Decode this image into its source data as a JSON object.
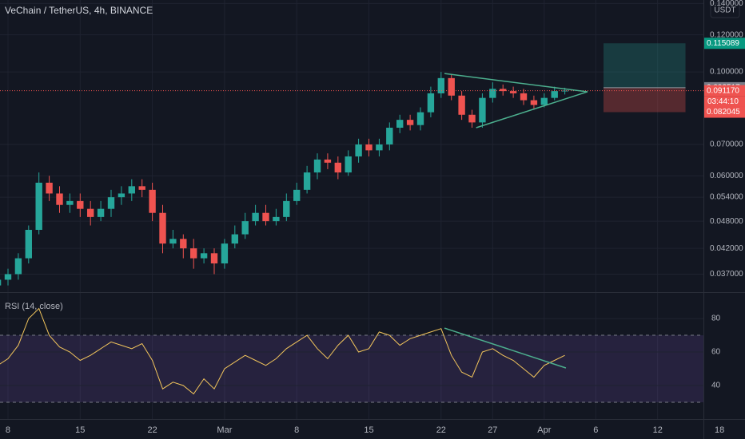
{
  "header": {
    "title": "VeChain / TetherUS, 4h, BINANCE",
    "currency": "USDT"
  },
  "chart_data": [
    {
      "type": "candlestick",
      "x": [
        -1,
        0,
        1,
        2,
        3,
        4,
        5,
        6,
        7,
        8,
        9,
        10,
        11,
        12,
        13,
        14,
        15,
        16,
        17,
        18,
        19,
        20,
        21,
        22,
        23,
        24,
        25,
        26,
        27,
        28,
        29,
        30,
        31,
        32,
        33,
        34,
        35,
        36,
        37,
        38,
        39,
        40,
        41,
        42,
        43,
        44,
        45,
        46,
        47,
        48,
        49,
        50,
        51,
        52,
        53,
        54
      ],
      "open": [
        0.035,
        0.036,
        0.037,
        0.04,
        0.046,
        0.058,
        0.055,
        0.052,
        0.053,
        0.051,
        0.049,
        0.051,
        0.054,
        0.055,
        0.057,
        0.056,
        0.05,
        0.043,
        0.044,
        0.042,
        0.04,
        0.041,
        0.039,
        0.043,
        0.045,
        0.048,
        0.05,
        0.048,
        0.049,
        0.053,
        0.056,
        0.061,
        0.065,
        0.064,
        0.061,
        0.066,
        0.07,
        0.068,
        0.07,
        0.076,
        0.079,
        0.077,
        0.082,
        0.09,
        0.097,
        0.089,
        0.081,
        0.078,
        0.088,
        0.092,
        0.091,
        0.09,
        0.087,
        0.085,
        0.088,
        0.091
      ],
      "high": [
        0.037,
        0.038,
        0.041,
        0.047,
        0.061,
        0.06,
        0.057,
        0.055,
        0.055,
        0.053,
        0.053,
        0.056,
        0.057,
        0.059,
        0.059,
        0.058,
        0.052,
        0.046,
        0.045,
        0.044,
        0.042,
        0.042,
        0.044,
        0.047,
        0.05,
        0.052,
        0.052,
        0.051,
        0.055,
        0.058,
        0.063,
        0.067,
        0.067,
        0.066,
        0.068,
        0.072,
        0.072,
        0.072,
        0.078,
        0.081,
        0.081,
        0.084,
        0.093,
        0.1,
        0.099,
        0.091,
        0.083,
        0.09,
        0.095,
        0.094,
        0.093,
        0.092,
        0.089,
        0.09,
        0.093,
        0.0925
      ],
      "low": [
        0.034,
        0.035,
        0.036,
        0.039,
        0.045,
        0.053,
        0.05,
        0.05,
        0.049,
        0.047,
        0.048,
        0.049,
        0.052,
        0.053,
        0.054,
        0.048,
        0.041,
        0.042,
        0.04,
        0.038,
        0.039,
        0.037,
        0.038,
        0.042,
        0.044,
        0.047,
        0.047,
        0.047,
        0.048,
        0.052,
        0.055,
        0.059,
        0.062,
        0.059,
        0.06,
        0.064,
        0.066,
        0.066,
        0.068,
        0.074,
        0.075,
        0.075,
        0.08,
        0.088,
        0.087,
        0.079,
        0.076,
        0.076,
        0.086,
        0.089,
        0.088,
        0.085,
        0.083,
        0.084,
        0.087,
        0.0895
      ],
      "close": [
        0.036,
        0.037,
        0.04,
        0.046,
        0.058,
        0.055,
        0.052,
        0.053,
        0.051,
        0.049,
        0.051,
        0.054,
        0.055,
        0.057,
        0.056,
        0.05,
        0.043,
        0.044,
        0.042,
        0.04,
        0.041,
        0.039,
        0.043,
        0.045,
        0.048,
        0.05,
        0.048,
        0.049,
        0.053,
        0.056,
        0.061,
        0.065,
        0.064,
        0.061,
        0.066,
        0.07,
        0.068,
        0.07,
        0.076,
        0.079,
        0.077,
        0.082,
        0.09,
        0.097,
        0.089,
        0.081,
        0.078,
        0.088,
        0.092,
        0.091,
        0.09,
        0.087,
        0.085,
        0.088,
        0.091,
        0.0912
      ],
      "up_color": "#26a69a",
      "down_color": "#ef5350",
      "xlim": [
        -0.775,
        67.44
      ],
      "xticks": [
        {
          "value": 0,
          "label": "8"
        },
        {
          "value": 7,
          "label": "15"
        },
        {
          "value": 14,
          "label": "22"
        },
        {
          "value": 21,
          "label": "Mar"
        },
        {
          "value": 28,
          "label": "8"
        },
        {
          "value": 35,
          "label": "15"
        },
        {
          "value": 42,
          "label": "22"
        },
        {
          "value": 47,
          "label": "27"
        },
        {
          "value": 52,
          "label": "Apr"
        },
        {
          "value": 57,
          "label": "6"
        },
        {
          "value": 63,
          "label": "12"
        },
        {
          "value": 69,
          "label": "18"
        }
      ],
      "ylim": [
        0.034,
        0.1424
      ],
      "log_scale": true,
      "yticks": [
        {
          "value": 0.037,
          "label": "0.037000"
        },
        {
          "value": 0.042,
          "label": "0.042000"
        },
        {
          "value": 0.048,
          "label": "0.048000"
        },
        {
          "value": 0.054,
          "label": "0.054000"
        },
        {
          "value": 0.06,
          "label": "0.060000"
        },
        {
          "value": 0.07,
          "label": "0.070000"
        },
        {
          "value": 0.1,
          "label": "0.100000"
        },
        {
          "value": 0.12,
          "label": "0.120000"
        },
        {
          "value": 0.14,
          "label": "0.140000"
        }
      ],
      "current_price": {
        "value": 0.09117,
        "label": "0.091170"
      },
      "countdown": "03:44:10",
      "position": {
        "x": [
          57.75,
          65.7
        ],
        "target": 0.115089,
        "entry": 0.092517,
        "stop": 0.082045
      },
      "drawings": [
        {
          "x": [
            42.33,
            56.2
          ],
          "y": [
            0.0992,
            0.0907
          ],
          "color": "#4caf8e"
        },
        {
          "x": [
            45.4,
            56.2
          ],
          "y": [
            0.076,
            0.0907
          ],
          "color": "#4caf8e"
        }
      ]
    },
    {
      "type": "line",
      "title": "RSI (14, close)",
      "x": [
        -1,
        0,
        1,
        2,
        3,
        4,
        5,
        6,
        7,
        8,
        9,
        10,
        11,
        12,
        13,
        14,
        15,
        16,
        17,
        18,
        19,
        20,
        21,
        22,
        23,
        24,
        25,
        26,
        27,
        28,
        29,
        30,
        31,
        32,
        33,
        34,
        35,
        36,
        37,
        38,
        39,
        40,
        41,
        42,
        43,
        44,
        45,
        46,
        47,
        48,
        49,
        50,
        51,
        52,
        53,
        54
      ],
      "values": [
        52,
        56,
        64,
        80,
        86,
        70,
        63,
        60,
        55,
        58,
        62,
        66,
        64,
        62,
        65,
        55,
        38,
        42,
        40,
        35,
        44,
        38,
        50,
        54,
        58,
        55,
        52,
        56,
        62,
        66,
        70,
        62,
        56,
        64,
        70,
        60,
        62,
        72,
        70,
        64,
        68,
        70,
        72,
        74,
        58,
        48,
        45,
        60,
        62,
        58,
        55,
        50,
        45,
        52,
        55,
        58
      ],
      "color": "#f2c55c",
      "ylim": [
        20,
        94.8
      ],
      "yticks": [
        40,
        60,
        80
      ],
      "bands": [
        30,
        70
      ],
      "drawings": [
        {
          "x": [
            42.33,
            54.1
          ],
          "y": [
            74.3,
            50.5
          ],
          "color": "#4caf8e"
        }
      ]
    }
  ]
}
